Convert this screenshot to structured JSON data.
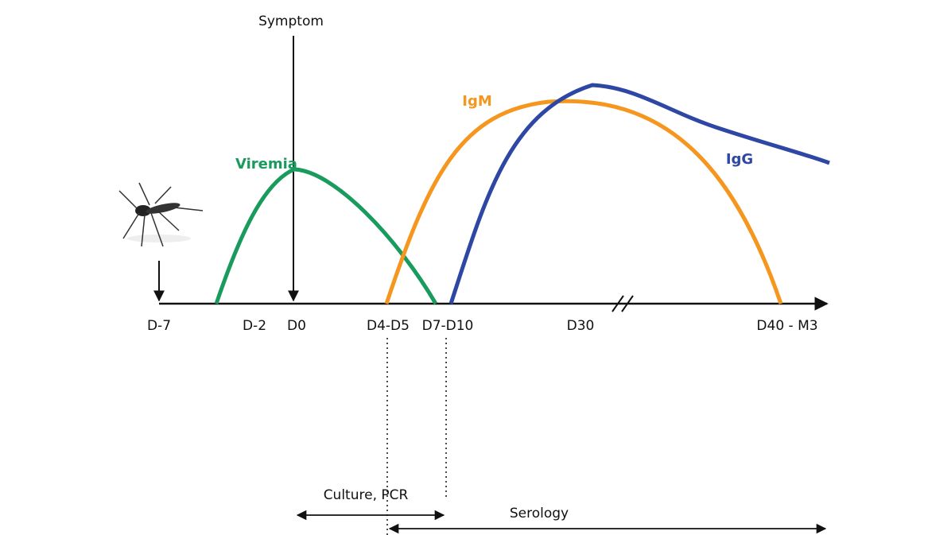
{
  "labels": {
    "symptom": "Symptom",
    "viremia": "Viremia",
    "igm": "IgM",
    "igg": "IgG"
  },
  "axis_labels": [
    "D-7",
    "D-2",
    "D0",
    "D4-D5",
    "D7-D10",
    "D30",
    "D40 - M3"
  ],
  "ranges": [
    {
      "label": "Culture, PCR"
    },
    {
      "label": "Serology"
    }
  ]
}
